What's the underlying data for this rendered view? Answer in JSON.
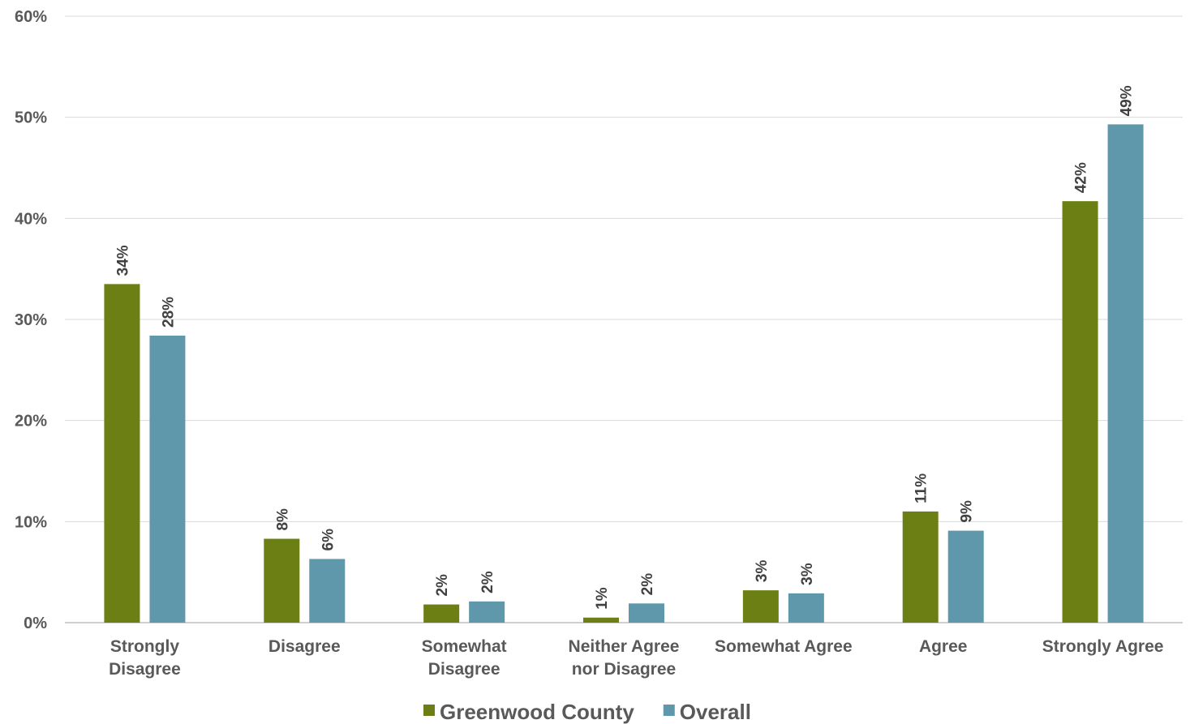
{
  "chart_data": {
    "type": "bar",
    "categories": [
      [
        "Strongly",
        "Disagree"
      ],
      [
        "Disagree"
      ],
      [
        "Somewhat",
        "Disagree"
      ],
      [
        "Neither Agree",
        "nor Disagree"
      ],
      [
        "Somewhat Agree"
      ],
      [
        "Agree"
      ],
      [
        "Strongly Agree"
      ]
    ],
    "series": [
      {
        "name": "Greenwood County",
        "color": "#6b7f14",
        "values": [
          33.5,
          8.3,
          1.8,
          0.5,
          3.2,
          11.0,
          41.7
        ],
        "labels": [
          "34%",
          "8%",
          "2%",
          "1%",
          "3%",
          "11%",
          "42%"
        ]
      },
      {
        "name": "Overall",
        "color": "#5f97ab",
        "values": [
          28.4,
          6.3,
          2.1,
          1.9,
          2.9,
          9.1,
          49.3
        ],
        "labels": [
          "28%",
          "6%",
          "2%",
          "2%",
          "3%",
          "9%",
          "49%"
        ]
      }
    ],
    "y_ticks": [
      "0%",
      "10%",
      "20%",
      "30%",
      "40%",
      "50%",
      "60%"
    ],
    "ylim": [
      0,
      60
    ],
    "grid": true,
    "legend": "bottom-center"
  }
}
